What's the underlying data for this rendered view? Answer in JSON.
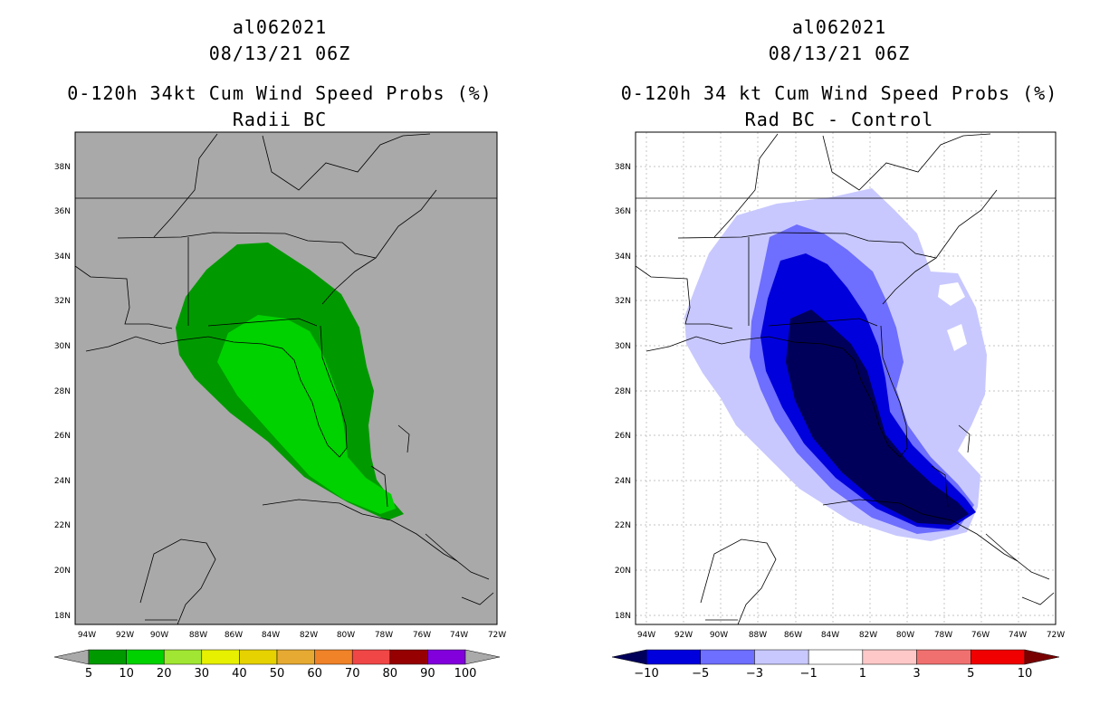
{
  "panels": [
    {
      "storm_id": "al062021",
      "datetime": "08/13/21 06Z",
      "product": "0-120h 34kt Cum Wind Speed Probs (%)",
      "subtitle": "Radii BC",
      "lat_labels": [
        "38N",
        "36N",
        "34N",
        "32N",
        "30N",
        "28N",
        "26N",
        "24N",
        "22N",
        "20N",
        "18N"
      ],
      "lon_labels": [
        "94W",
        "92W",
        "90W",
        "88W",
        "86W",
        "84W",
        "82W",
        "80W",
        "78W",
        "76W",
        "74W",
        "72W"
      ],
      "colorbar": {
        "colors": [
          "#009a00",
          "#00d200",
          "#a0e632",
          "#e6f000",
          "#e6d200",
          "#e6aa32",
          "#f08228",
          "#f04646",
          "#960000",
          "#8200dc"
        ],
        "under_color": "#aaaaaa",
        "over_color": "#aaaaaa",
        "labels": [
          "5",
          "10",
          "20",
          "30",
          "40",
          "50",
          "60",
          "70",
          "80",
          "90",
          "100"
        ]
      }
    },
    {
      "storm_id": "al062021",
      "datetime": "08/13/21 06Z",
      "product": "0-120h 34 kt Cum Wind Speed Probs (%)",
      "subtitle": "Rad BC - Control",
      "lat_labels": [
        "38N",
        "36N",
        "34N",
        "32N",
        "30N",
        "28N",
        "26N",
        "24N",
        "22N",
        "20N",
        "18N"
      ],
      "lon_labels": [
        "94W",
        "92W",
        "90W",
        "88W",
        "86W",
        "84W",
        "82W",
        "80W",
        "78W",
        "76W",
        "74W",
        "72W"
      ],
      "colorbar": {
        "colors": [
          "#0000dc",
          "#6e6eff",
          "#c8c8ff",
          "#ffffff",
          "#ffc8c8",
          "#f07070",
          "#f00000"
        ],
        "under_color": "#00005a",
        "over_color": "#780000",
        "labels": [
          "-10",
          "-5",
          "-3",
          "-1",
          "1",
          "3",
          "5",
          "10"
        ]
      }
    }
  ]
}
